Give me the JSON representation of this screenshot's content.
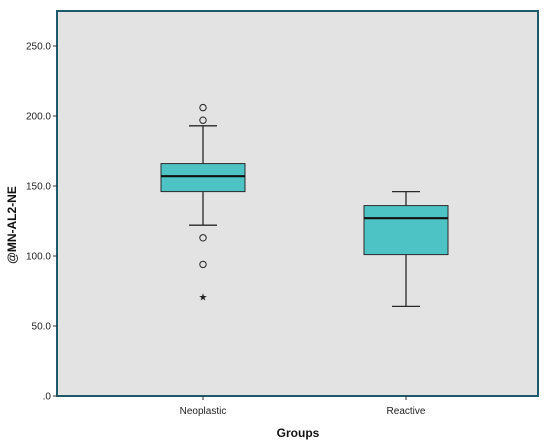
{
  "chart_data": {
    "type": "boxplot",
    "title": "",
    "xlabel": "Groups",
    "ylabel": "@MN-AL2-NE",
    "ylim": [
      0,
      275
    ],
    "yticks": [
      0,
      50,
      100,
      150,
      200,
      250
    ],
    "ytick_labels": [
      ".0",
      "50.0",
      "100.0",
      "150.0",
      "200.0",
      "250.0"
    ],
    "categories": [
      "Neoplastic",
      "Reactive"
    ],
    "grid": false,
    "colors": {
      "plot_bg": "#e3e3e3",
      "frame": "#1d5a6a",
      "box_fill": "#4ec3c6",
      "box_stroke": "#2a2a2a"
    },
    "boxes": [
      {
        "category": "Neoplastic",
        "whisker_low": 122,
        "q1": 146,
        "median": 157,
        "q3": 166,
        "whisker_high": 193,
        "outliers": [
          206,
          197,
          113,
          94
        ],
        "extremes": [
          71
        ]
      },
      {
        "category": "Reactive",
        "whisker_low": 64,
        "q1": 101,
        "median": 127,
        "q3": 136,
        "whisker_high": 146,
        "outliers": [],
        "extremes": []
      }
    ]
  }
}
